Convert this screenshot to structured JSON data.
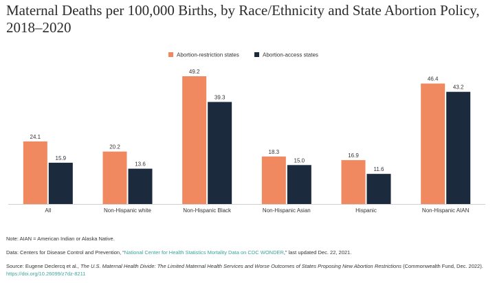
{
  "chart_data": {
    "type": "bar",
    "title": "Maternal Deaths per 100,000 Births, by Race/Ethnicity and State Abortion Policy, 2018–2020",
    "categories": [
      "All",
      "Non-Hispanic white",
      "Non-Hispanic Black",
      "Non-Hispanic Asian",
      "Hispanic",
      "Non-Hispanic AIAN"
    ],
    "series": [
      {
        "name": "Abortion-restriction states",
        "color": "#f0895f",
        "values": [
          24.1,
          20.2,
          49.2,
          18.3,
          16.9,
          46.4
        ]
      },
      {
        "name": "Abortion-access states",
        "color": "#1b2a3d",
        "values": [
          15.9,
          13.6,
          39.3,
          15.0,
          11.6,
          43.2
        ]
      }
    ],
    "value_labels": [
      [
        "24.1",
        "20.2",
        "49.2",
        "18.3",
        "16.9",
        "46.4"
      ],
      [
        "15.9",
        "13.6",
        "39.3",
        "15.0",
        "11.6",
        "43.2"
      ]
    ],
    "ylim": [
      0,
      49.2
    ],
    "legend_position": "top-center",
    "grid": false
  },
  "notes": {
    "note": "Note: AIAN = American Indian or Alaska Native.",
    "data_prefix": "Data: Centers for Disease Control and Prevention, “",
    "data_link": "National Center for Health Statistics Mortality Data on CDC WONDER",
    "data_suffix": ",” last updated Dec. 22, 2021.",
    "source_prefix": "Source: Eugene Declercq et al., ",
    "source_title": "The U.S. Maternal Health Divide: The Limited Maternal Health Services and Worse Outcomes of States Proposing New Abortion Restrictions",
    "source_suffix": " (Commonwealth Fund, Dec. 2022). ",
    "source_link": "https://doi.org/10.26099/z7dz-8211"
  }
}
